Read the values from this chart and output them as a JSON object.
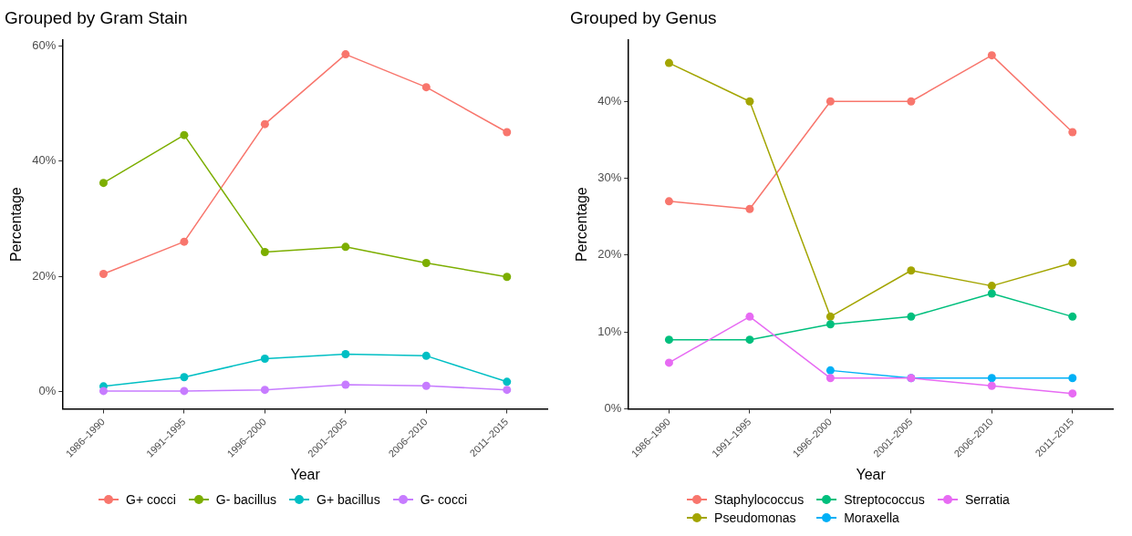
{
  "chart_data": [
    {
      "type": "line",
      "title": "Grouped by Gram Stain",
      "xlabel": "Year",
      "ylabel": "Percentage",
      "categories": [
        "1986–1990",
        "1991–1995",
        "1996–2000",
        "2001–2005",
        "2006–2010",
        "2011–2015"
      ],
      "series": [
        {
          "name": "G+ cocci",
          "color": "#f8766d",
          "values": [
            20.4,
            26,
            46.4,
            58.5,
            52.8,
            45
          ]
        },
        {
          "name": "G- bacillus",
          "color": "#7cae00",
          "values": [
            36.2,
            44.5,
            24.2,
            25.1,
            22.3,
            19.9
          ]
        },
        {
          "name": "G+ bacillus",
          "color": "#00bfc4",
          "values": [
            0.9,
            2.5,
            5.7,
            6.5,
            6.2,
            1.7
          ]
        },
        {
          "name": "G- cocci",
          "color": "#c77cff",
          "values": [
            0.1,
            0.1,
            0.3,
            1.2,
            1.0,
            0.3
          ]
        }
      ],
      "ylim": [
        -3,
        61
      ],
      "yticks": [
        {
          "value": 0,
          "label": "0%"
        },
        {
          "value": 20,
          "label": "20%"
        },
        {
          "value": 40,
          "label": "40%"
        },
        {
          "value": 60,
          "label": "60%"
        }
      ],
      "grid": false,
      "legend": "bottom",
      "marker": "circle",
      "line_style": "solid"
    },
    {
      "type": "line",
      "title": "Grouped by Genus",
      "xlabel": "Year",
      "ylabel": "Percentage",
      "categories": [
        "1986–1990",
        "1991–1995",
        "1996–2000",
        "2001–2005",
        "2006–2010",
        "2011–2015"
      ],
      "series": [
        {
          "name": "Staphylococcus",
          "color": "#f8766d",
          "values": [
            27,
            26,
            40,
            40,
            46,
            36
          ]
        },
        {
          "name": "Pseudomonas",
          "color": "#a3a500",
          "values": [
            45,
            40,
            12,
            18,
            16,
            19
          ]
        },
        {
          "name": "Streptococcus",
          "color": "#00bf7d",
          "values": [
            9,
            9,
            11,
            12,
            15,
            12
          ]
        },
        {
          "name": "Moraxella",
          "color": "#00b0f6",
          "values": [
            null,
            null,
            5,
            4,
            4,
            4
          ]
        },
        {
          "name": "Serratia",
          "color": "#e76bf3",
          "values": [
            6,
            12,
            4,
            4,
            3,
            2
          ]
        }
      ],
      "ylim": [
        0,
        48
      ],
      "yticks": [
        {
          "value": 0,
          "label": "0%"
        },
        {
          "value": 10,
          "label": "10%"
        },
        {
          "value": 20,
          "label": "20%"
        },
        {
          "value": 30,
          "label": "30%"
        },
        {
          "value": 40,
          "label": "40%"
        }
      ],
      "grid": false,
      "legend": "bottom",
      "marker": "circle",
      "line_style": "solid"
    }
  ]
}
